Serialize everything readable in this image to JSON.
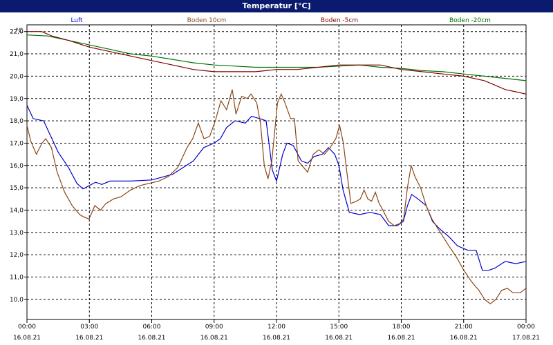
{
  "chart_data": {
    "type": "line",
    "title": "Temperatur [°C]",
    "ylabel": "°C",
    "ylim": [
      9.1,
      22.3
    ],
    "grid": true,
    "y_ticks": [
      "22,0",
      "21,0",
      "20,0",
      "19,0",
      "18,0",
      "17,0",
      "16,0",
      "15,0",
      "14,0",
      "13,0",
      "12,0",
      "11,0",
      "10,0"
    ],
    "x_ticks": [
      {
        "time": "00:00",
        "date": "16.08.21"
      },
      {
        "time": "03:00",
        "date": "16.08.21"
      },
      {
        "time": "06:00",
        "date": "16.08.21"
      },
      {
        "time": "09:00",
        "date": "16.08.21"
      },
      {
        "time": "12:00",
        "date": "16.08.21"
      },
      {
        "time": "15:00",
        "date": "16.08.21"
      },
      {
        "time": "18:00",
        "date": "16.08.21"
      },
      {
        "time": "21:00",
        "date": "16.08.21"
      },
      {
        "time": "00:00",
        "date": "17.08.21"
      }
    ],
    "series": [
      {
        "name": "Luft",
        "color": "#0000cc",
        "points": [
          [
            0,
            18.7
          ],
          [
            0.3,
            18.1
          ],
          [
            0.8,
            18.0
          ],
          [
            1.1,
            17.4
          ],
          [
            1.5,
            16.6
          ],
          [
            2.0,
            15.9
          ],
          [
            2.4,
            15.2
          ],
          [
            2.7,
            14.95
          ],
          [
            3.0,
            15.1
          ],
          [
            3.3,
            15.25
          ],
          [
            3.6,
            15.15
          ],
          [
            4.0,
            15.3
          ],
          [
            5.0,
            15.3
          ],
          [
            6.0,
            15.35
          ],
          [
            7.0,
            15.6
          ],
          [
            7.5,
            15.9
          ],
          [
            8.0,
            16.2
          ],
          [
            8.5,
            16.8
          ],
          [
            9.0,
            17.0
          ],
          [
            9.3,
            17.2
          ],
          [
            9.6,
            17.7
          ],
          [
            10.0,
            18.0
          ],
          [
            10.5,
            17.9
          ],
          [
            10.8,
            18.2
          ],
          [
            11.2,
            18.1
          ],
          [
            11.5,
            18.0
          ],
          [
            11.8,
            15.8
          ],
          [
            12.0,
            15.3
          ],
          [
            12.3,
            16.5
          ],
          [
            12.5,
            17.0
          ],
          [
            12.8,
            16.9
          ],
          [
            13.2,
            16.2
          ],
          [
            13.5,
            16.1
          ],
          [
            13.8,
            16.4
          ],
          [
            14.2,
            16.5
          ],
          [
            14.5,
            16.8
          ],
          [
            14.8,
            16.5
          ],
          [
            15.0,
            16.0
          ],
          [
            15.2,
            14.9
          ],
          [
            15.5,
            13.9
          ],
          [
            16.0,
            13.8
          ],
          [
            16.5,
            13.9
          ],
          [
            17.0,
            13.8
          ],
          [
            17.4,
            13.3
          ],
          [
            17.8,
            13.3
          ],
          [
            18.1,
            13.5
          ],
          [
            18.3,
            14.2
          ],
          [
            18.5,
            14.7
          ],
          [
            18.8,
            14.5
          ],
          [
            19.2,
            14.2
          ],
          [
            19.5,
            13.5
          ],
          [
            19.8,
            13.2
          ],
          [
            20.3,
            12.8
          ],
          [
            20.7,
            12.4
          ],
          [
            21.2,
            12.2
          ],
          [
            21.6,
            12.2
          ],
          [
            21.9,
            11.3
          ],
          [
            22.2,
            11.3
          ],
          [
            22.5,
            11.4
          ],
          [
            23.0,
            11.7
          ],
          [
            23.5,
            11.6
          ],
          [
            24.0,
            11.7
          ]
        ]
      },
      {
        "name": "Boden 10cm",
        "color": "#8b4513",
        "points": [
          [
            0,
            17.8
          ],
          [
            0.2,
            17.1
          ],
          [
            0.5,
            16.5
          ],
          [
            0.8,
            17.0
          ],
          [
            1.0,
            17.2
          ],
          [
            1.3,
            16.8
          ],
          [
            1.6,
            15.7
          ],
          [
            2.0,
            14.8
          ],
          [
            2.4,
            14.2
          ],
          [
            2.8,
            13.8
          ],
          [
            3.0,
            13.7
          ],
          [
            3.3,
            13.6
          ],
          [
            3.6,
            14.2
          ],
          [
            3.9,
            14.0
          ],
          [
            4.2,
            14.3
          ],
          [
            4.6,
            14.5
          ],
          [
            5.0,
            14.6
          ],
          [
            5.5,
            14.9
          ],
          [
            6.0,
            15.1
          ],
          [
            6.5,
            15.2
          ],
          [
            7.0,
            15.3
          ],
          [
            7.5,
            15.5
          ],
          [
            8.0,
            15.9
          ],
          [
            8.5,
            16.8
          ],
          [
            8.8,
            17.2
          ],
          [
            9.1,
            17.9
          ],
          [
            9.4,
            17.2
          ],
          [
            9.7,
            17.3
          ],
          [
            10.0,
            18.0
          ],
          [
            10.3,
            18.9
          ],
          [
            10.6,
            18.5
          ],
          [
            10.9,
            19.4
          ],
          [
            11.1,
            18.3
          ],
          [
            11.4,
            19.1
          ],
          [
            11.7,
            19.0
          ],
          [
            11.9,
            19.2
          ],
          [
            12.2,
            18.8
          ],
          [
            12.4,
            17.9
          ],
          [
            12.6,
            16.0
          ],
          [
            12.8,
            15.4
          ],
          [
            13.0,
            16.2
          ],
          [
            13.3,
            18.8
          ],
          [
            13.5,
            19.2
          ],
          [
            13.7,
            18.8
          ],
          [
            14.0,
            18.1
          ],
          [
            14.2,
            18.1
          ],
          [
            14.4,
            16.2
          ],
          [
            14.6,
            16.0
          ],
          [
            14.9,
            15.7
          ],
          [
            15.2,
            16.5
          ],
          [
            15.5,
            16.7
          ],
          [
            15.8,
            16.5
          ],
          [
            16.1,
            16.8
          ],
          [
            16.4,
            17.2
          ],
          [
            16.6,
            17.8
          ],
          [
            16.8,
            17.0
          ],
          [
            17.0,
            15.6
          ],
          [
            17.2,
            14.3
          ],
          [
            17.5,
            14.4
          ],
          [
            17.7,
            14.5
          ],
          [
            17.9,
            14.9
          ],
          [
            18.1,
            14.5
          ],
          [
            18.3,
            14.4
          ],
          [
            18.5,
            14.8
          ],
          [
            18.7,
            14.3
          ],
          [
            18.9,
            14.0
          ],
          [
            19.2,
            13.5
          ],
          [
            19.5,
            13.3
          ],
          [
            19.8,
            13.4
          ],
          [
            20.0,
            13.6
          ],
          [
            20.2,
            15.0
          ],
          [
            20.4,
            16.0
          ],
          [
            20.6,
            15.5
          ],
          [
            20.9,
            15.0
          ],
          [
            21.2,
            14.2
          ],
          [
            21.5,
            13.6
          ],
          [
            21.8,
            13.2
          ],
          [
            22.1,
            12.8
          ],
          [
            22.4,
            12.4
          ],
          [
            22.8,
            11.9
          ],
          [
            23.2,
            11.3
          ],
          [
            23.6,
            10.8
          ],
          [
            24.0,
            10.4
          ],
          [
            24.3,
            10.0
          ],
          [
            24.6,
            9.8
          ],
          [
            24.9,
            10.0
          ],
          [
            25.2,
            10.4
          ],
          [
            25.5,
            10.5
          ],
          [
            25.8,
            10.3
          ],
          [
            26.2,
            10.3
          ],
          [
            26.5,
            10.5
          ]
        ]
      },
      {
        "name": "Boden -5cm",
        "color": "#800000",
        "points": [
          [
            0,
            22.0
          ],
          [
            0.7,
            22.0
          ],
          [
            1.2,
            21.8
          ],
          [
            2.0,
            21.6
          ],
          [
            3.0,
            21.3
          ],
          [
            4.0,
            21.1
          ],
          [
            5.0,
            20.9
          ],
          [
            6.0,
            20.7
          ],
          [
            7.0,
            20.5
          ],
          [
            8.0,
            20.3
          ],
          [
            9.0,
            20.2
          ],
          [
            10.0,
            20.2
          ],
          [
            11.0,
            20.2
          ],
          [
            12.0,
            20.3
          ],
          [
            13.0,
            20.3
          ],
          [
            14.0,
            20.4
          ],
          [
            15.0,
            20.5
          ],
          [
            16.0,
            20.5
          ],
          [
            17.0,
            20.5
          ],
          [
            18.0,
            20.3
          ],
          [
            19.0,
            20.2
          ],
          [
            20.0,
            20.1
          ],
          [
            21.0,
            20.0
          ],
          [
            22.0,
            19.8
          ],
          [
            22.5,
            19.6
          ],
          [
            23.0,
            19.4
          ],
          [
            23.5,
            19.3
          ],
          [
            24.0,
            19.2
          ]
        ]
      },
      {
        "name": "Boden -20cm",
        "color": "#007000",
        "points": [
          [
            0,
            21.85
          ],
          [
            1.0,
            21.8
          ],
          [
            2.0,
            21.6
          ],
          [
            3.0,
            21.4
          ],
          [
            4.0,
            21.2
          ],
          [
            5.0,
            21.0
          ],
          [
            6.0,
            20.9
          ],
          [
            7.0,
            20.75
          ],
          [
            8.0,
            20.6
          ],
          [
            9.0,
            20.5
          ],
          [
            10.0,
            20.45
          ],
          [
            11.0,
            20.4
          ],
          [
            12.0,
            20.4
          ],
          [
            13.0,
            20.4
          ],
          [
            14.0,
            20.4
          ],
          [
            15.0,
            20.45
          ],
          [
            16.0,
            20.5
          ],
          [
            17.0,
            20.4
          ],
          [
            18.0,
            20.35
          ],
          [
            19.0,
            20.25
          ],
          [
            20.0,
            20.2
          ],
          [
            21.0,
            20.1
          ],
          [
            22.0,
            20.0
          ],
          [
            23.0,
            19.9
          ],
          [
            24.0,
            19.8
          ]
        ]
      }
    ]
  }
}
